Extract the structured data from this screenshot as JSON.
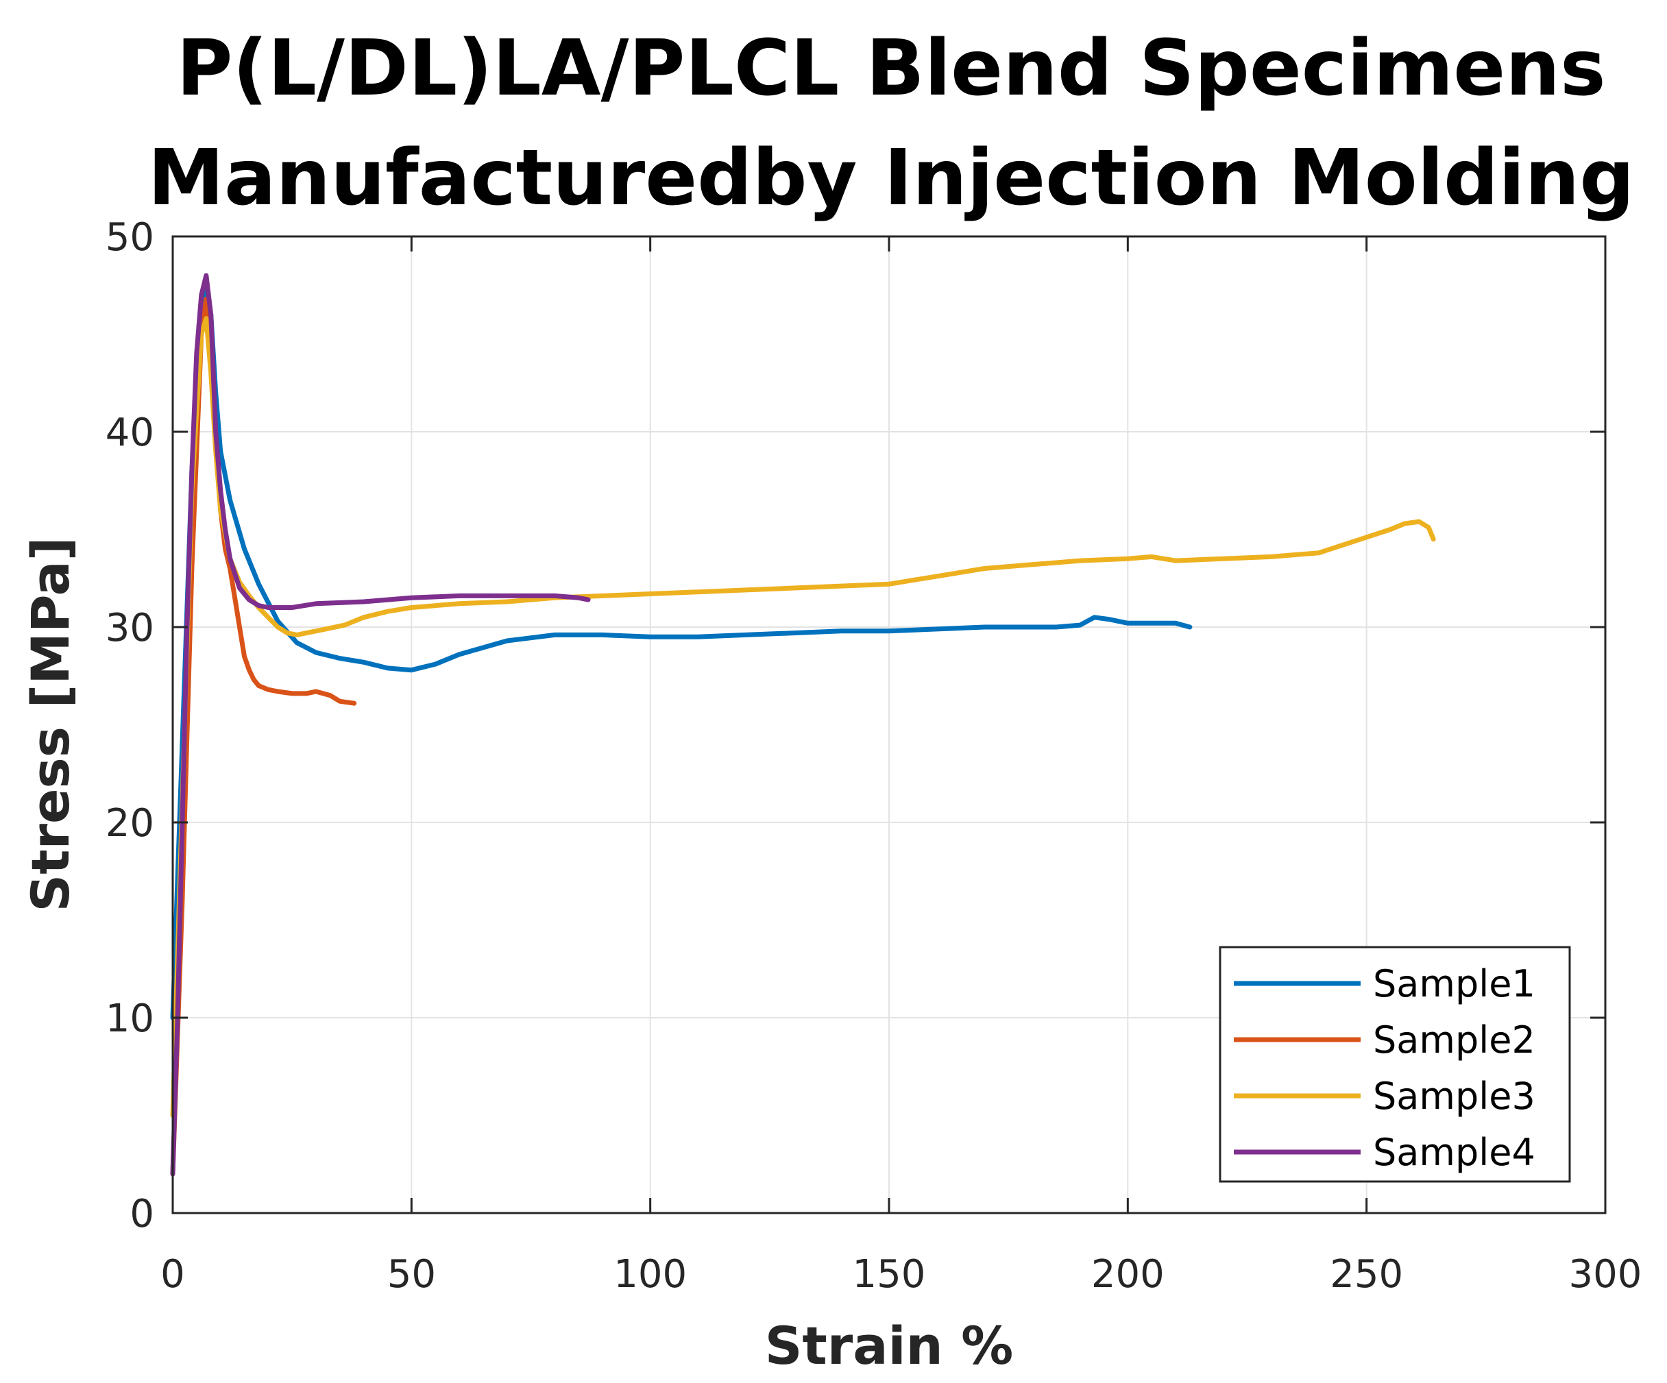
{
  "chart_data": {
    "type": "line",
    "title": [
      "P(L/DL)LA/PLCL Blend Specimens",
      "Manufacturedby Injection Molding"
    ],
    "xlabel": "Strain %",
    "ylabel": "Stress [MPa]",
    "xlim": [
      0,
      300
    ],
    "ylim": [
      0,
      50
    ],
    "xticks": [
      0,
      50,
      100,
      150,
      200,
      250,
      300
    ],
    "yticks": [
      0,
      10,
      20,
      30,
      40,
      50
    ],
    "grid": true,
    "legend_position": "bottom-right",
    "series": [
      {
        "name": "Sample1",
        "color": "#0072BD",
        "x": [
          0,
          2,
          4,
          6,
          7,
          8,
          9,
          10,
          12,
          15,
          18,
          22,
          26,
          30,
          35,
          40,
          45,
          50,
          55,
          60,
          70,
          80,
          90,
          100,
          110,
          120,
          130,
          140,
          150,
          160,
          170,
          180,
          185,
          190,
          193,
          196,
          200,
          205,
          210,
          213
        ],
        "y": [
          10,
          24,
          38,
          46,
          47.3,
          46,
          42,
          39,
          36.5,
          34,
          32.2,
          30.3,
          29.2,
          28.7,
          28.4,
          28.2,
          27.9,
          27.8,
          28.1,
          28.6,
          29.3,
          29.6,
          29.6,
          29.5,
          29.5,
          29.6,
          29.7,
          29.8,
          29.8,
          29.9,
          30,
          30,
          30,
          30.1,
          30.5,
          30.4,
          30.2,
          30.2,
          30.2,
          30
        ]
      },
      {
        "name": "Sample2",
        "color": "#D95319",
        "x": [
          0,
          2,
          4,
          6,
          7,
          8,
          9,
          10,
          11,
          12,
          13,
          14,
          15,
          16,
          17,
          18,
          20,
          22,
          25,
          28,
          30,
          33,
          35,
          38
        ],
        "y": [
          2,
          16,
          33,
          45,
          46.8,
          44,
          39.5,
          36,
          34,
          33,
          31.5,
          30,
          28.5,
          27.8,
          27.3,
          27,
          26.8,
          26.7,
          26.6,
          26.6,
          26.7,
          26.5,
          26.2,
          26.1
        ]
      },
      {
        "name": "Sample3",
        "color": "#EDB120",
        "x": [
          0,
          2,
          4,
          6,
          7,
          8,
          9,
          10,
          12,
          14,
          16,
          18,
          20,
          22,
          24,
          26,
          28,
          32,
          36,
          40,
          45,
          50,
          60,
          70,
          80,
          90,
          100,
          110,
          120,
          130,
          140,
          150,
          155,
          160,
          170,
          180,
          190,
          200,
          205,
          210,
          220,
          230,
          240,
          245,
          250,
          255,
          258,
          261,
          263,
          264
        ],
        "y": [
          5,
          21,
          37,
          45,
          45.8,
          43,
          39,
          36,
          33.5,
          32.3,
          31.6,
          31,
          30.5,
          30,
          29.7,
          29.6,
          29.7,
          29.9,
          30.1,
          30.5,
          30.8,
          31,
          31.2,
          31.3,
          31.5,
          31.6,
          31.7,
          31.8,
          31.9,
          32,
          32.1,
          32.2,
          32.4,
          32.6,
          33,
          33.2,
          33.4,
          33.5,
          33.6,
          33.4,
          33.5,
          33.6,
          33.8,
          34.2,
          34.6,
          35,
          35.3,
          35.4,
          35.1,
          34.5
        ]
      },
      {
        "name": "Sample4",
        "color": "#7E2F8E",
        "x": [
          0,
          1,
          2,
          3,
          4,
          5,
          6,
          7,
          8,
          9,
          10,
          11,
          12,
          14,
          16,
          18,
          20,
          25,
          30,
          40,
          50,
          60,
          70,
          80,
          85,
          87
        ],
        "y": [
          2,
          10,
          20,
          30,
          38,
          44,
          47,
          48,
          46,
          40,
          37,
          35,
          33.5,
          32,
          31.4,
          31.1,
          31,
          31,
          31.2,
          31.3,
          31.5,
          31.6,
          31.6,
          31.6,
          31.5,
          31.4
        ]
      }
    ]
  }
}
